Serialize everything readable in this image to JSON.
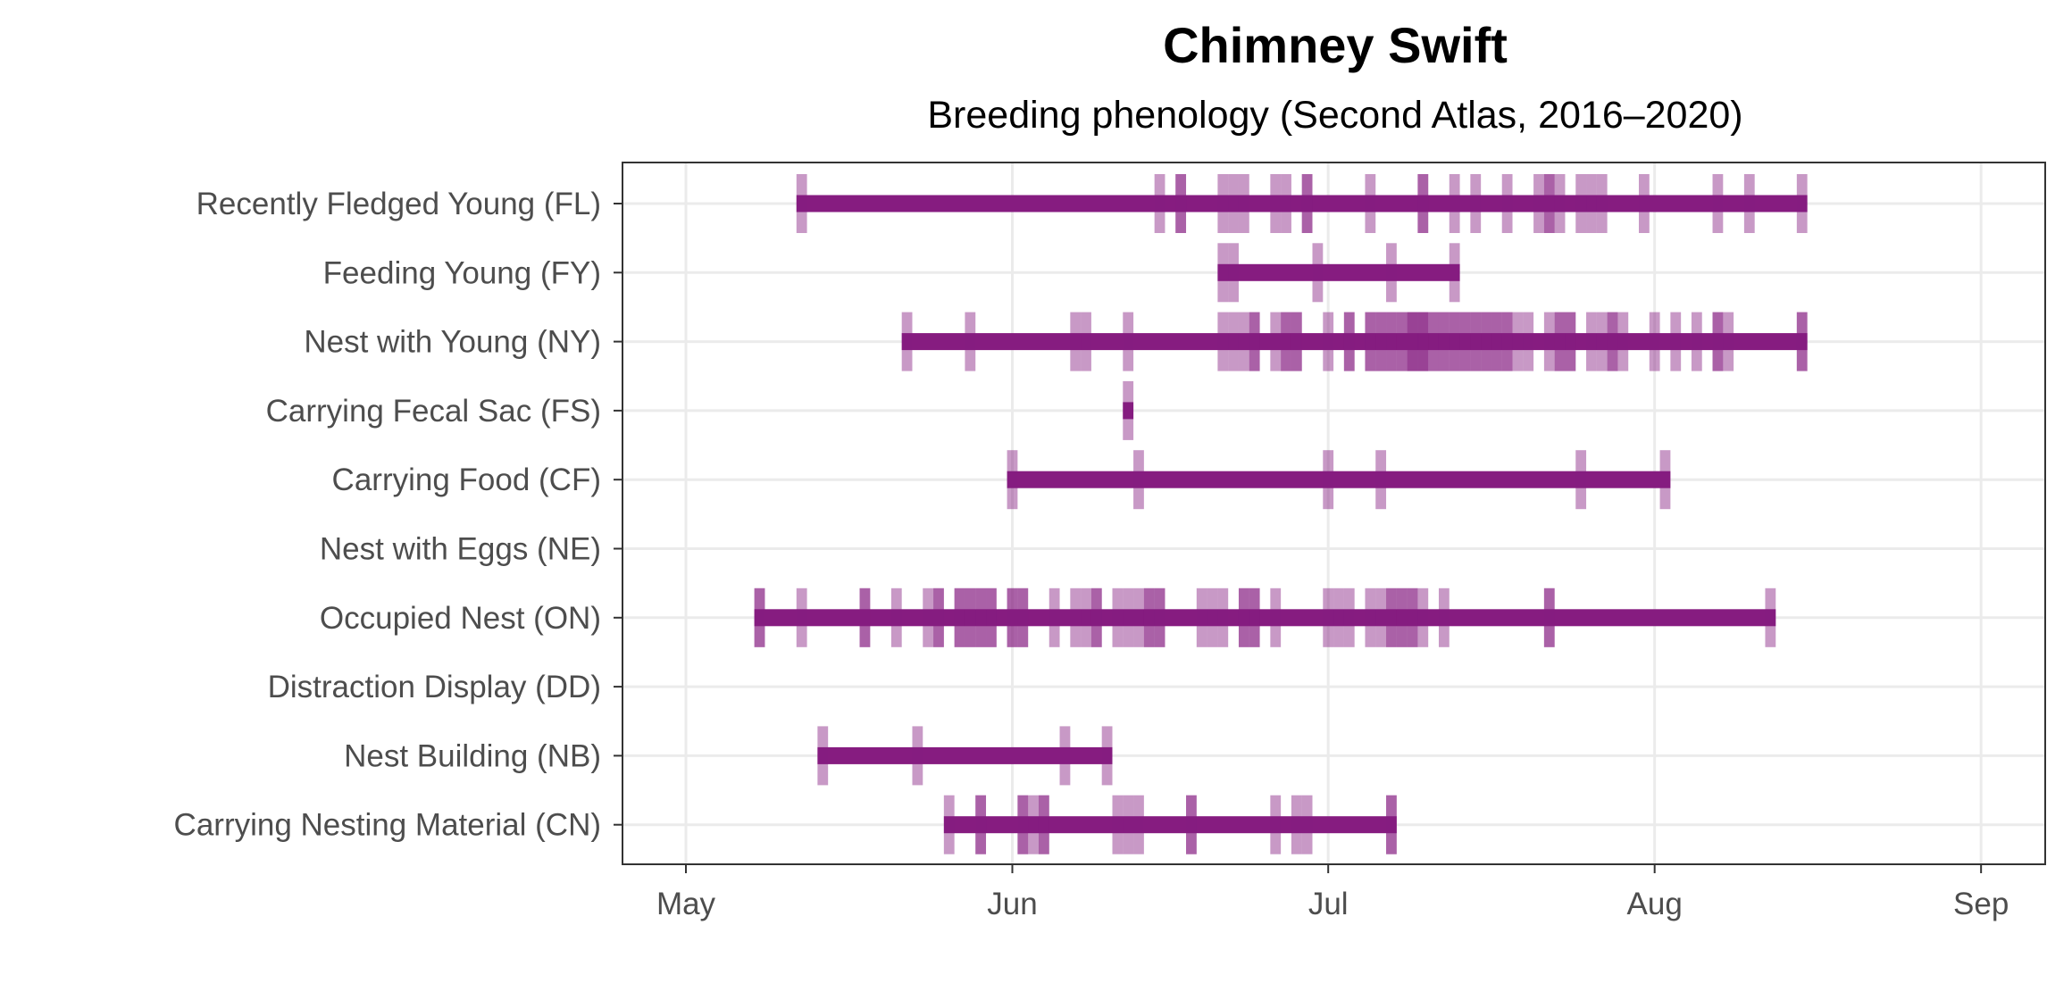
{
  "chart_data": {
    "type": "timeline",
    "title": "Chimney Swift",
    "subtitle": "Breeding phenology (Second Atlas, 2016–2020)",
    "xlabel": "",
    "ylabel": "",
    "xlim": [
      "04-26",
      "09-04"
    ],
    "x_ticks": [
      {
        "label": "May",
        "date": "05-01"
      },
      {
        "label": "Jun",
        "date": "06-01"
      },
      {
        "label": "Jul",
        "date": "07-01"
      },
      {
        "label": "Aug",
        "date": "08-01"
      },
      {
        "label": "Sep",
        "date": "09-01"
      }
    ],
    "grid": true,
    "colors": {
      "bar": "#861c80",
      "observation": "#861c80",
      "grid": "#ebebeb",
      "axis_text": "#4d4d4d"
    },
    "series": [
      {
        "name": "Recently Fledged Young (FL)",
        "range": [
          "05-12",
          "08-15"
        ],
        "observations": [
          "05-12",
          "06-15",
          "06-17",
          "06-17",
          "06-21",
          "06-22",
          "06-23",
          "06-26",
          "06-27",
          "06-29",
          "06-29",
          "07-05",
          "07-10",
          "07-10",
          "07-13",
          "07-15",
          "07-18",
          "07-21",
          "07-22",
          "07-22",
          "07-23",
          "07-25",
          "07-26",
          "07-27",
          "07-31",
          "08-07",
          "08-10",
          "08-15"
        ]
      },
      {
        "name": "Feeding Young (FY)",
        "range": [
          "06-21",
          "07-13"
        ],
        "observations": [
          "06-21",
          "06-22",
          "06-30",
          "07-07",
          "07-13"
        ]
      },
      {
        "name": "Nest with Young (NY)",
        "range": [
          "05-22",
          "08-15"
        ],
        "observations": [
          "05-22",
          "05-28",
          "06-07",
          "06-08",
          "06-12",
          "06-21",
          "06-22",
          "06-23",
          "06-24",
          "06-24",
          "06-26",
          "06-27",
          "06-27",
          "06-28",
          "06-28",
          "07-01",
          "07-03",
          "07-03",
          "07-05",
          "07-05",
          "07-06",
          "07-06",
          "07-07",
          "07-07",
          "07-08",
          "07-08",
          "07-09",
          "07-09",
          "07-09",
          "07-10",
          "07-10",
          "07-10",
          "07-11",
          "07-11",
          "07-12",
          "07-12",
          "07-13",
          "07-13",
          "07-14",
          "07-14",
          "07-15",
          "07-15",
          "07-16",
          "07-16",
          "07-17",
          "07-17",
          "07-18",
          "07-18",
          "07-19",
          "07-20",
          "07-22",
          "07-23",
          "07-23",
          "07-24",
          "07-24",
          "07-26",
          "07-27",
          "07-28",
          "07-28",
          "07-29",
          "08-01",
          "08-03",
          "08-05",
          "08-07",
          "08-07",
          "08-08",
          "08-15",
          "08-15"
        ]
      },
      {
        "name": "Carrying Fecal Sac (FS)",
        "range": [
          "06-12",
          "06-12"
        ],
        "observations": [
          "06-12"
        ]
      },
      {
        "name": "Carrying Food (CF)",
        "range": [
          "06-01",
          "08-02"
        ],
        "observations": [
          "06-01",
          "06-13",
          "07-01",
          "07-06",
          "07-25",
          "08-02"
        ]
      },
      {
        "name": "Nest with Eggs (NE)",
        "range": null,
        "observations": []
      },
      {
        "name": "Occupied Nest (ON)",
        "range": [
          "05-08",
          "08-12"
        ],
        "observations": [
          "05-08",
          "05-08",
          "05-12",
          "05-18",
          "05-18",
          "05-21",
          "05-24",
          "05-25",
          "05-25",
          "05-27",
          "05-27",
          "05-28",
          "05-28",
          "05-29",
          "05-29",
          "05-30",
          "05-30",
          "06-01",
          "06-01",
          "06-02",
          "06-02",
          "06-05",
          "06-07",
          "06-08",
          "06-09",
          "06-09",
          "06-11",
          "06-12",
          "06-13",
          "06-14",
          "06-14",
          "06-15",
          "06-15",
          "06-19",
          "06-20",
          "06-21",
          "06-23",
          "06-23",
          "06-24",
          "06-24",
          "06-26",
          "07-01",
          "07-02",
          "07-03",
          "07-05",
          "07-06",
          "07-07",
          "07-07",
          "07-08",
          "07-08",
          "07-09",
          "07-09",
          "07-10",
          "07-12",
          "07-22",
          "07-22",
          "08-12"
        ]
      },
      {
        "name": "Distraction Display (DD)",
        "range": null,
        "observations": []
      },
      {
        "name": "Nest Building (NB)",
        "range": [
          "05-14",
          "06-10"
        ],
        "observations": [
          "05-14",
          "05-23",
          "06-06",
          "06-10"
        ]
      },
      {
        "name": "Carrying Nesting Material (CN)",
        "range": [
          "05-26",
          "07-07"
        ],
        "observations": [
          "05-26",
          "05-29",
          "05-29",
          "06-02",
          "06-02",
          "06-03",
          "06-04",
          "06-04",
          "06-11",
          "06-12",
          "06-13",
          "06-18",
          "06-18",
          "06-26",
          "06-28",
          "06-29",
          "07-07",
          "07-07"
        ]
      }
    ]
  }
}
